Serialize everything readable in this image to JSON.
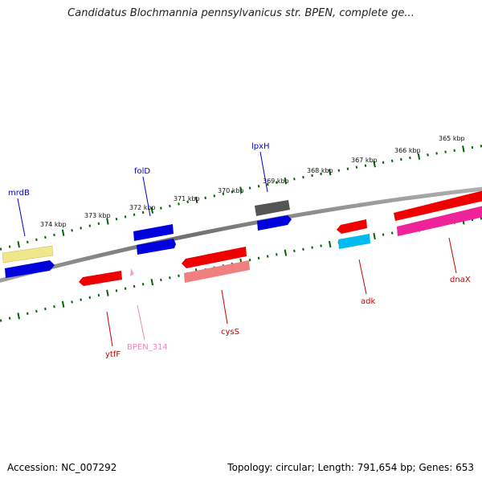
{
  "title": "Candidatus Blochmannia pennsylvanicus str. BPEN, complete ge...",
  "footer": {
    "accession": "Accession: NC_007292",
    "summary": "Topology: circular; Length: 791,654 bp; Genes: 653"
  },
  "scale_ticks": [
    {
      "label": "365 kbp"
    },
    {
      "label": "366 kbp"
    },
    {
      "label": "367 kbp"
    },
    {
      "label": "368 kbp"
    },
    {
      "label": "369 kbp"
    },
    {
      "label": "370 kbp"
    },
    {
      "label": "371 kbp"
    },
    {
      "label": "372 kbp"
    },
    {
      "label": "373 kbp"
    },
    {
      "label": "374 kbp"
    }
  ],
  "genes": [
    {
      "label": "mrdB",
      "color": "#0000cc"
    },
    {
      "label": "folD",
      "color": "#0000cc"
    },
    {
      "label": "lpxH",
      "color": "#0000cc"
    },
    {
      "label": "ytfF",
      "color": "#cc0000"
    },
    {
      "label": "BPEN_314",
      "color": "#ee88bb"
    },
    {
      "label": "cysS",
      "color": "#cc0000"
    },
    {
      "label": "adk",
      "color": "#cc0000"
    },
    {
      "label": "dnaX",
      "color": "#cc0000"
    }
  ],
  "colors": {
    "backbone": "#808080",
    "tick": "#006600",
    "forward_gene": "#0000e0",
    "reverse_gene": "#ee0000",
    "pseudo_gene": "#f4a0d0",
    "rna_gene": "#f0e080",
    "other_gene": "#606060",
    "cyan_gene": "#00bbee",
    "magenta_gene": "#ee2299",
    "salmon_gene": "#f08080"
  }
}
